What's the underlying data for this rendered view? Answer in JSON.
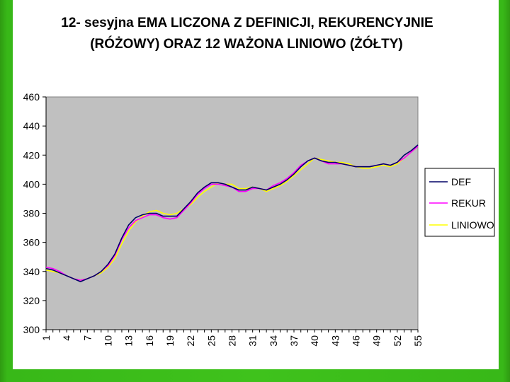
{
  "chart_data": {
    "type": "line",
    "title_line1": "12- sesyjna EMA LICZONA Z DEFINICJI, REKURENCYJNIE",
    "title_line2": "(RÓŻOWY) ORAZ 12 WAŻONA LINIOWO (ŻÓŁTY)",
    "xlabel": "",
    "ylabel": "",
    "ylim": [
      300,
      460
    ],
    "yticks": [
      300,
      320,
      340,
      360,
      380,
      400,
      420,
      440,
      460
    ],
    "xlim": [
      1,
      55
    ],
    "xticks": [
      1,
      4,
      7,
      10,
      13,
      16,
      19,
      22,
      25,
      28,
      31,
      34,
      37,
      40,
      43,
      46,
      49,
      52,
      55
    ],
    "grid": false,
    "plot_background": "#c0c0c0",
    "legend_placement": "right",
    "series": [
      {
        "name": "DEF",
        "color": "#000066",
        "x": [
          1,
          2,
          3,
          4,
          5,
          6,
          7,
          8,
          9,
          10,
          11,
          12,
          13,
          14,
          15,
          16,
          17,
          18,
          19,
          20,
          21,
          22,
          23,
          24,
          25,
          26,
          27,
          28,
          29,
          30,
          31,
          32,
          33,
          34,
          35,
          36,
          37,
          38,
          39,
          40,
          41,
          42,
          43,
          44,
          45,
          46,
          47,
          48,
          49,
          50,
          51,
          52,
          53,
          54,
          55
        ],
        "values": [
          342,
          341,
          339,
          337,
          335,
          333,
          335,
          337,
          340,
          345,
          352,
          363,
          372,
          377,
          379,
          380,
          380,
          378,
          378,
          378,
          383,
          388,
          394,
          398,
          401,
          401,
          400,
          398,
          396,
          396,
          398,
          397,
          396,
          398,
          400,
          403,
          407,
          412,
          416,
          418,
          416,
          415,
          415,
          414,
          413,
          412,
          412,
          412,
          413,
          414,
          413,
          415,
          420,
          423,
          427
        ]
      },
      {
        "name": "REKUR",
        "color": "#ff00ff",
        "x": [
          1,
          2,
          3,
          4,
          5,
          6,
          7,
          8,
          9,
          10,
          11,
          12,
          13,
          14,
          15,
          16,
          17,
          18,
          19,
          20,
          21,
          22,
          23,
          24,
          25,
          26,
          27,
          28,
          29,
          30,
          31,
          32,
          33,
          34,
          35,
          36,
          37,
          38,
          39,
          40,
          41,
          42,
          43,
          44,
          45,
          46,
          47,
          48,
          49,
          50,
          51,
          52,
          53,
          54,
          55
        ],
        "values": [
          343,
          342,
          340,
          337,
          335,
          334,
          335,
          337,
          340,
          344,
          351,
          362,
          370,
          375,
          377,
          379,
          379,
          377,
          376,
          377,
          382,
          387,
          393,
          397,
          400,
          400,
          399,
          398,
          395,
          395,
          397,
          397,
          396,
          399,
          401,
          404,
          408,
          413,
          416,
          418,
          416,
          414,
          414,
          414,
          413,
          412,
          412,
          412,
          413,
          414,
          413,
          415,
          418,
          422,
          426
        ]
      },
      {
        "name": "LINIOWO",
        "color": "#ffff00",
        "x": [
          1,
          2,
          3,
          4,
          5,
          6,
          7,
          8,
          9,
          10,
          11,
          12,
          13,
          14,
          15,
          16,
          17,
          18,
          19,
          20,
          21,
          22,
          23,
          24,
          25,
          26,
          27,
          28,
          29,
          30,
          31,
          32,
          33,
          34,
          35,
          36,
          37,
          38,
          39,
          40,
          41,
          42,
          43,
          44,
          45,
          46,
          47,
          48,
          49,
          50,
          51,
          52,
          53,
          54,
          55
        ],
        "values": [
          341,
          340,
          339,
          337,
          335,
          334,
          335,
          337,
          339,
          343,
          349,
          359,
          368,
          374,
          378,
          381,
          382,
          380,
          379,
          380,
          383,
          386,
          391,
          395,
          398,
          401,
          400,
          400,
          397,
          397,
          398,
          397,
          395,
          397,
          399,
          402,
          406,
          410,
          414,
          418,
          417,
          416,
          415,
          415,
          414,
          412,
          411,
          411,
          412,
          413,
          412,
          414,
          418,
          422,
          426
        ]
      }
    ]
  }
}
